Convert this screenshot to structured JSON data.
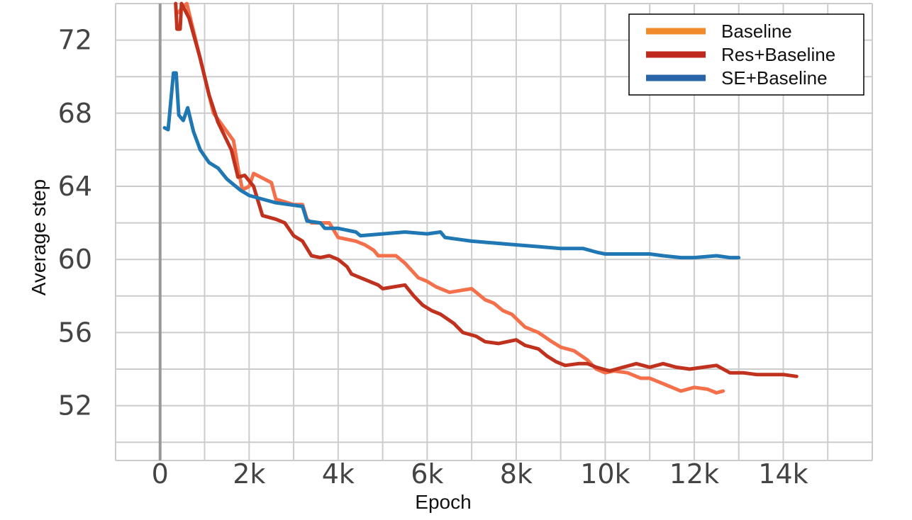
{
  "chart_data": {
    "type": "line",
    "xlabel": "Epoch",
    "ylabel": "Average step",
    "xlim": [
      -1000,
      16000
    ],
    "ylim": [
      49,
      74
    ],
    "x_ticks": [
      0,
      2000,
      4000,
      6000,
      8000,
      10000,
      12000,
      14000
    ],
    "x_tick_labels": [
      "0",
      "2k",
      "4k",
      "6k",
      "8k",
      "10k",
      "12k",
      "14k"
    ],
    "y_ticks": [
      52,
      56,
      60,
      64,
      68,
      72
    ],
    "y_tick_labels": [
      "52",
      "56",
      "60",
      "64",
      "68",
      "72"
    ],
    "grid": true,
    "legend_position": "top-right",
    "series": [
      {
        "name": "Baseline",
        "legend_color": "#f08a2a",
        "line_color": "#f4704a",
        "points": [
          [
            400,
            73.5
          ],
          [
            600,
            74
          ],
          [
            800,
            72
          ],
          [
            1000,
            70
          ],
          [
            1200,
            68
          ],
          [
            1500,
            67
          ],
          [
            1650,
            66.5
          ],
          [
            1750,
            65
          ],
          [
            1850,
            63.8
          ],
          [
            2000,
            64
          ],
          [
            2100,
            64.7
          ],
          [
            2500,
            64.2
          ],
          [
            2600,
            63.3
          ],
          [
            3000,
            63
          ],
          [
            3200,
            63
          ],
          [
            3300,
            62.2
          ],
          [
            3400,
            62
          ],
          [
            3800,
            62
          ],
          [
            4000,
            61.2
          ],
          [
            4400,
            61
          ],
          [
            4500,
            60.9
          ],
          [
            4600,
            60.8
          ],
          [
            4800,
            60.5
          ],
          [
            4900,
            60.2
          ],
          [
            5300,
            60.2
          ],
          [
            5500,
            59.8
          ],
          [
            5800,
            59
          ],
          [
            6000,
            58.8
          ],
          [
            6200,
            58.5
          ],
          [
            6500,
            58.2
          ],
          [
            7000,
            58.4
          ],
          [
            7200,
            58
          ],
          [
            7300,
            57.8
          ],
          [
            7500,
            57.6
          ],
          [
            7700,
            57.2
          ],
          [
            7900,
            57
          ],
          [
            8200,
            56.3
          ],
          [
            8500,
            56
          ],
          [
            8800,
            55.5
          ],
          [
            9000,
            55.2
          ],
          [
            9300,
            55
          ],
          [
            9600,
            54.5
          ],
          [
            9800,
            54
          ],
          [
            10000,
            53.8
          ],
          [
            10200,
            53.9
          ],
          [
            10500,
            53.8
          ],
          [
            10800,
            53.5
          ],
          [
            11000,
            53.5
          ],
          [
            11300,
            53.2
          ],
          [
            11500,
            53
          ],
          [
            11700,
            52.8
          ],
          [
            12000,
            53
          ],
          [
            12300,
            52.9
          ],
          [
            12500,
            52.7
          ],
          [
            12650,
            52.8
          ]
        ]
      },
      {
        "name": "Res+Baseline",
        "legend_color": "#c0281e",
        "line_color": "#c0321e",
        "points": [
          [
            350,
            74
          ],
          [
            380,
            72.6
          ],
          [
            450,
            72.6
          ],
          [
            480,
            74
          ],
          [
            650,
            73.2
          ],
          [
            900,
            71
          ],
          [
            1100,
            69
          ],
          [
            1300,
            67.5
          ],
          [
            1600,
            66
          ],
          [
            1750,
            64.5
          ],
          [
            1900,
            64.6
          ],
          [
            2100,
            64
          ],
          [
            2300,
            62.4
          ],
          [
            2600,
            62.2
          ],
          [
            2800,
            62
          ],
          [
            3000,
            61.3
          ],
          [
            3200,
            61
          ],
          [
            3400,
            60.2
          ],
          [
            3600,
            60.1
          ],
          [
            3800,
            60.2
          ],
          [
            4000,
            60
          ],
          [
            4200,
            59.6
          ],
          [
            4300,
            59.2
          ],
          [
            4600,
            58.9
          ],
          [
            4900,
            58.6
          ],
          [
            5000,
            58.4
          ],
          [
            5500,
            58.6
          ],
          [
            5700,
            58
          ],
          [
            5900,
            57.5
          ],
          [
            6100,
            57.2
          ],
          [
            6300,
            57
          ],
          [
            6600,
            56.5
          ],
          [
            6800,
            56
          ],
          [
            7100,
            55.8
          ],
          [
            7300,
            55.5
          ],
          [
            7600,
            55.4
          ],
          [
            8000,
            55.6
          ],
          [
            8200,
            55.3
          ],
          [
            8500,
            55.1
          ],
          [
            8700,
            54.7
          ],
          [
            8900,
            54.4
          ],
          [
            9100,
            54.2
          ],
          [
            9400,
            54.3
          ],
          [
            9600,
            54.3
          ],
          [
            9800,
            54.1
          ],
          [
            10100,
            53.9
          ],
          [
            10400,
            54.1
          ],
          [
            10700,
            54.3
          ],
          [
            11000,
            54.1
          ],
          [
            11300,
            54.3
          ],
          [
            11600,
            54.1
          ],
          [
            11900,
            54
          ],
          [
            12200,
            54.1
          ],
          [
            12500,
            54.2
          ],
          [
            12800,
            53.8
          ],
          [
            13100,
            53.8
          ],
          [
            13400,
            53.7
          ],
          [
            13700,
            53.7
          ],
          [
            14000,
            53.7
          ],
          [
            14300,
            53.6
          ]
        ]
      },
      {
        "name": "SE+Baseline",
        "legend_color": "#2a64a8",
        "line_color": "#1f77b4",
        "points": [
          [
            100,
            67.2
          ],
          [
            180,
            67.1
          ],
          [
            300,
            70.2
          ],
          [
            360,
            70.2
          ],
          [
            420,
            67.9
          ],
          [
            520,
            67.6
          ],
          [
            620,
            68.3
          ],
          [
            750,
            67
          ],
          [
            900,
            66
          ],
          [
            1100,
            65.3
          ],
          [
            1300,
            65
          ],
          [
            1500,
            64.4
          ],
          [
            1800,
            63.8
          ],
          [
            2000,
            63.5
          ],
          [
            2300,
            63.3
          ],
          [
            2600,
            63.1
          ],
          [
            2900,
            63
          ],
          [
            3200,
            62.9
          ],
          [
            3300,
            62.1
          ],
          [
            3600,
            62
          ],
          [
            3700,
            61.7
          ],
          [
            4000,
            61.7
          ],
          [
            4400,
            61.5
          ],
          [
            4500,
            61.3
          ],
          [
            5000,
            61.4
          ],
          [
            5500,
            61.5
          ],
          [
            6000,
            61.4
          ],
          [
            6300,
            61.5
          ],
          [
            6400,
            61.2
          ],
          [
            6700,
            61.1
          ],
          [
            7000,
            61
          ],
          [
            7500,
            60.9
          ],
          [
            8000,
            60.8
          ],
          [
            8500,
            60.7
          ],
          [
            9000,
            60.6
          ],
          [
            9500,
            60.6
          ],
          [
            9800,
            60.4
          ],
          [
            10000,
            60.3
          ],
          [
            10500,
            60.3
          ],
          [
            11000,
            60.3
          ],
          [
            11300,
            60.2
          ],
          [
            11700,
            60.1
          ],
          [
            12000,
            60.1
          ],
          [
            12500,
            60.2
          ],
          [
            12800,
            60.1
          ],
          [
            13000,
            60.1
          ]
        ]
      }
    ]
  }
}
